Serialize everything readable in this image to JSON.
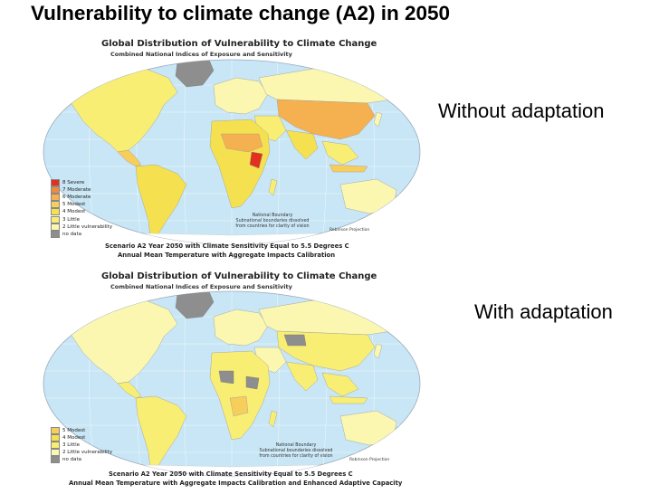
{
  "slide": {
    "title": "Vulnerability to climate change (A2) in 2050",
    "label_top": "Without adaptation",
    "label_bottom": "With adaptation"
  },
  "maps": [
    {
      "title": "Global Distribution of Vulnerability to Climate Change",
      "subtitle": "Combined National Indices of Exposure and Sensitivity",
      "legend": [
        {
          "label": "8 Severe",
          "color": "#e0321e"
        },
        {
          "label": "7 Moderate",
          "color": "#f08a3c"
        },
        {
          "label": "6 Moderate",
          "color": "#f5b050"
        },
        {
          "label": "5 Modest",
          "color": "#f7cd5c"
        },
        {
          "label": "4 Modest",
          "color": "#f5e14f"
        },
        {
          "label": "3 Little",
          "color": "#f8ee74"
        },
        {
          "label": "2 Little vulnerability",
          "color": "#fbf7b0"
        },
        {
          "label": "no data",
          "color": "#8e8e8e"
        }
      ],
      "boundary_note": {
        "line1": "National Boundary",
        "line2": "Subnational boundaries dissolved",
        "line3": "from countries for clarity of vision"
      },
      "projection": "Robinson Projection",
      "caption_line1": "Scenario A2 Year 2050 with Climate Sensitivity Equal to 5.5 Degrees C",
      "caption_line2": "Annual Mean Temperature with Aggregate Impacts Calibration"
    },
    {
      "title": "Global Distribution of Vulnerability to Climate Change",
      "subtitle": "Combined National Indices of Exposure and Sensitivity",
      "legend": [
        {
          "label": "5 Modest",
          "color": "#f7cd5c"
        },
        {
          "label": "4 Modest",
          "color": "#f5e14f"
        },
        {
          "label": "3 Little",
          "color": "#f8ee74"
        },
        {
          "label": "2 Little vulnerability",
          "color": "#fbf7b0"
        },
        {
          "label": "no data",
          "color": "#8e8e8e"
        }
      ],
      "boundary_note": {
        "line1": "National Boundary",
        "line2": "Subnational boundaries dissolved",
        "line3": "from countries for clarity of vision"
      },
      "projection": "Robinson Projection",
      "caption_line1": "Scenario A2 Year 2050 with Climate Sensitivity Equal to 5.5 Degrees C",
      "caption_line2": "Annual Mean Temperature with Aggregate Impacts Calibration and Enhanced Adaptive Capacity"
    }
  ],
  "colors": {
    "ocean": "#c8e6f5",
    "land_base": "#f8ee74",
    "land_light": "#fbf7b0",
    "no_data": "#8e8e8e",
    "moderate": "#f5b050",
    "severe": "#e0321e",
    "grid": "#ffffff"
  }
}
